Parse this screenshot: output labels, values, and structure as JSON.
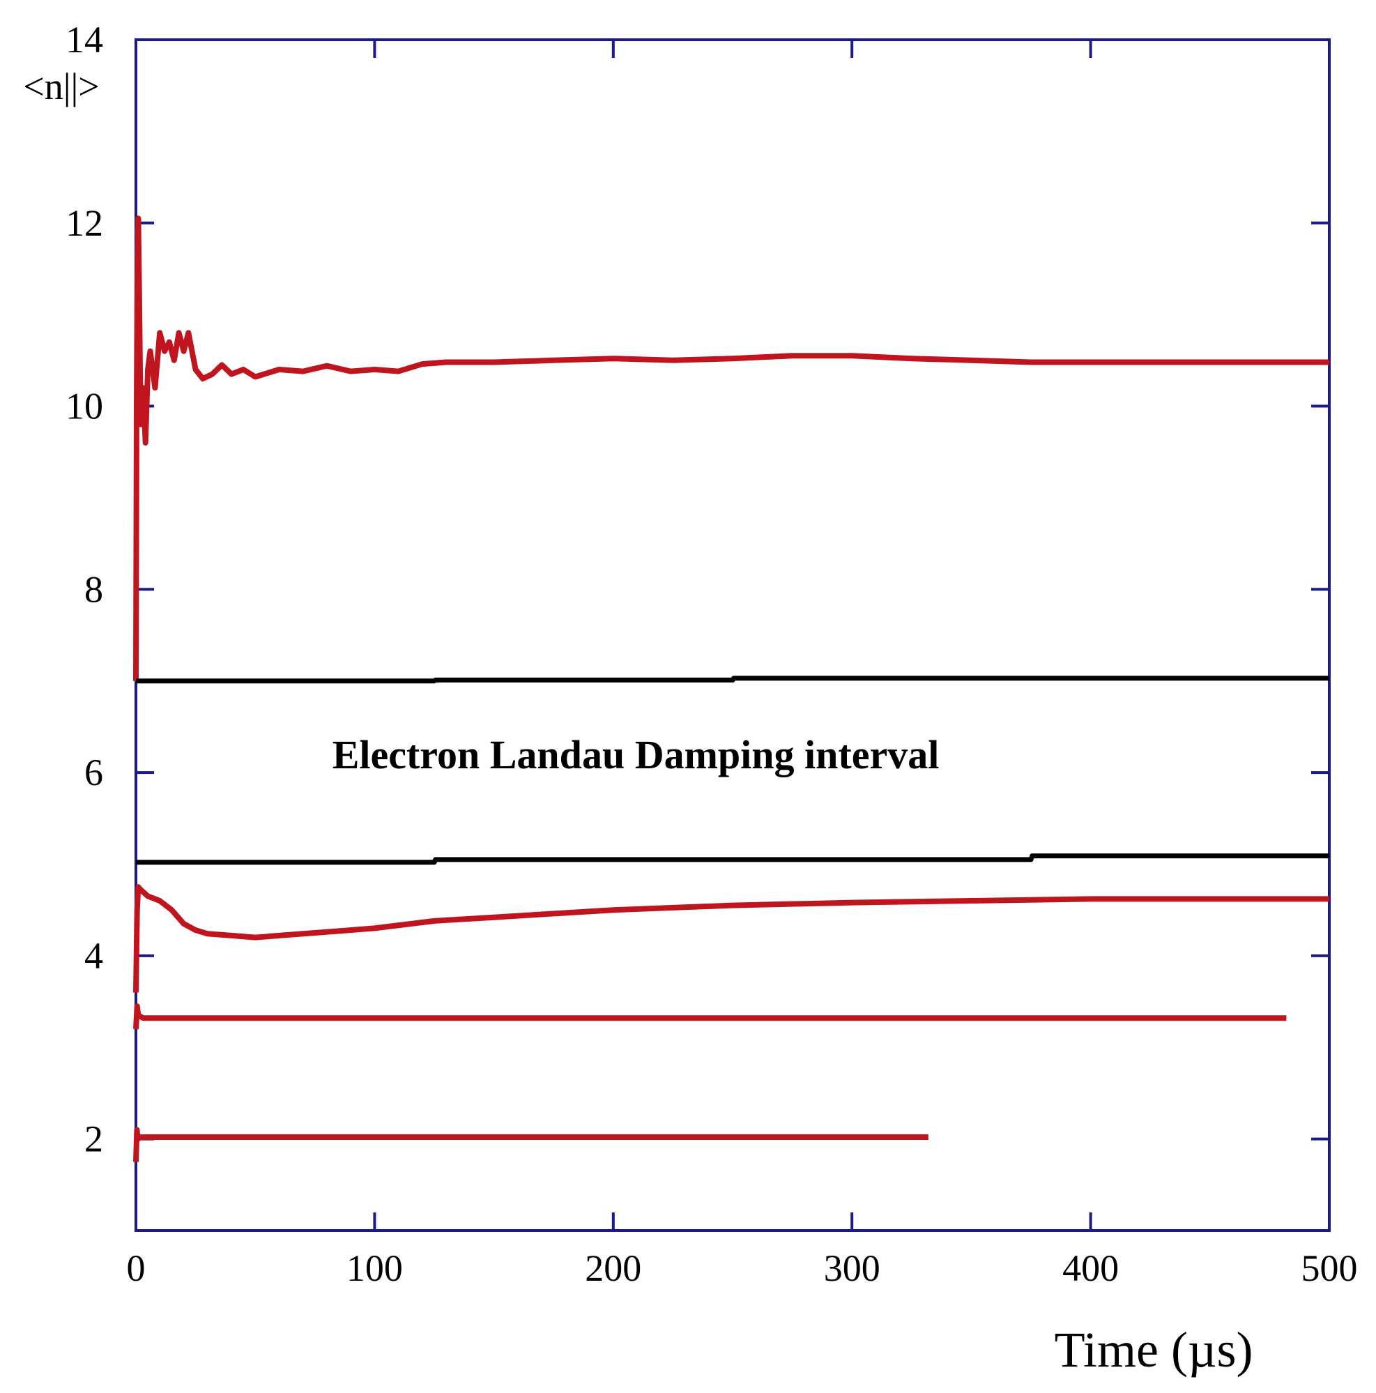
{
  "chart_data": {
    "type": "line",
    "title": "",
    "xlabel": "Time (µs)",
    "ylabel": "<n||>",
    "xlim": [
      0,
      500
    ],
    "ylim": [
      1,
      14
    ],
    "xticks": [
      0,
      100,
      200,
      300,
      400,
      500
    ],
    "xtick_labels": [
      "0",
      "100",
      "200",
      "300",
      "400",
      "500"
    ],
    "yticks": [
      2,
      4,
      6,
      8,
      10,
      12,
      14
    ],
    "ytick_labels": [
      "2",
      "4",
      "6",
      "8",
      "10",
      "12",
      "14"
    ],
    "grid": false,
    "legend": "none",
    "annotation": "Electron Landau Damping interval",
    "colors": {
      "axis": "#1a1a8c",
      "red_series": "#c0141e",
      "black_series": "#000000"
    },
    "series": [
      {
        "color": "#c0141e",
        "x": [
          0,
          0.3,
          0.6,
          1,
          1.5,
          2,
          3,
          4,
          5,
          6,
          8,
          10,
          12,
          14,
          16,
          18,
          20,
          22,
          25,
          28,
          32,
          36,
          40,
          45,
          50,
          60,
          70,
          80,
          90,
          100,
          110,
          120,
          130,
          150,
          175,
          200,
          225,
          250,
          275,
          300,
          325,
          350,
          375,
          400,
          425,
          450,
          475,
          500
        ],
        "y": [
          7.0,
          10.0,
          11.6,
          12.05,
          11.0,
          9.8,
          10.2,
          9.6,
          10.4,
          10.6,
          10.2,
          10.8,
          10.6,
          10.7,
          10.5,
          10.8,
          10.6,
          10.8,
          10.4,
          10.3,
          10.35,
          10.45,
          10.35,
          10.4,
          10.32,
          10.4,
          10.38,
          10.44,
          10.38,
          10.4,
          10.38,
          10.46,
          10.48,
          10.48,
          10.5,
          10.52,
          10.5,
          10.52,
          10.55,
          10.55,
          10.52,
          10.5,
          10.48,
          10.48,
          10.48,
          10.48,
          10.48,
          10.48
        ]
      },
      {
        "color": "#000000",
        "x": [
          0,
          125,
          125.5,
          250,
          250.5,
          500
        ],
        "y": [
          7.0,
          7.0,
          7.01,
          7.01,
          7.03,
          7.03
        ]
      },
      {
        "color": "#000000",
        "x": [
          0,
          125,
          125.5,
          375,
          375.5,
          500
        ],
        "y": [
          5.02,
          5.02,
          5.05,
          5.05,
          5.09,
          5.09
        ]
      },
      {
        "color": "#c0141e",
        "x": [
          0,
          0.5,
          1,
          2,
          5,
          10,
          15,
          20,
          25,
          30,
          40,
          50,
          60,
          75,
          100,
          125,
          150,
          200,
          250,
          300,
          350,
          400,
          450,
          500
        ],
        "y": [
          3.6,
          4.5,
          4.75,
          4.72,
          4.65,
          4.6,
          4.5,
          4.35,
          4.28,
          4.24,
          4.22,
          4.2,
          4.22,
          4.25,
          4.3,
          4.38,
          4.42,
          4.5,
          4.55,
          4.58,
          4.6,
          4.62,
          4.62,
          4.62
        ]
      },
      {
        "color": "#c0141e",
        "x": [
          0,
          0.5,
          1,
          3,
          5,
          100,
          200,
          300,
          400,
          482
        ],
        "y": [
          3.2,
          3.45,
          3.35,
          3.32,
          3.32,
          3.32,
          3.32,
          3.32,
          3.32,
          3.32
        ]
      },
      {
        "color": "#c0141e",
        "x": [
          0,
          0.4,
          0.8,
          2,
          5,
          100,
          200,
          300,
          332
        ],
        "y": [
          1.75,
          2.1,
          2.0,
          2.02,
          2.02,
          2.02,
          2.02,
          2.02,
          2.02
        ]
      }
    ]
  }
}
